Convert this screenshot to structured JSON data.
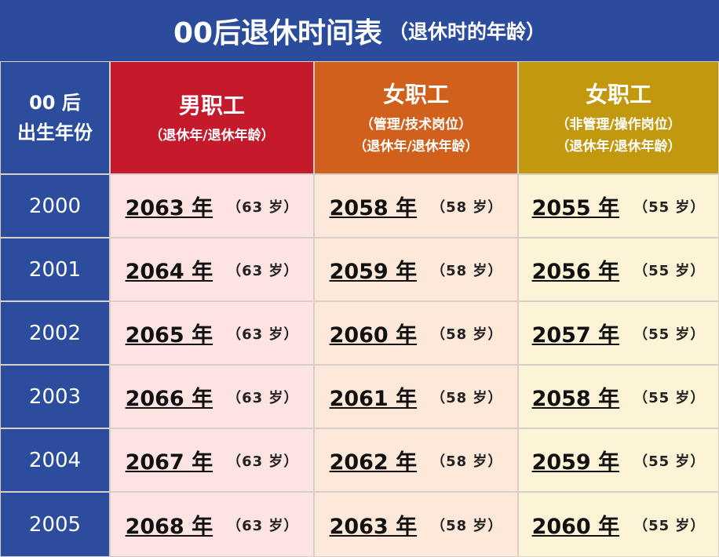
{
  "header": {
    "title": "00后退休时间表",
    "subtitle": "（退休时的年龄）"
  },
  "table": {
    "columns": [
      {
        "lines": [
          "00 后",
          "出生年份"
        ]
      },
      {
        "lines": [
          "男职工",
          "（退休年/退休年龄）"
        ]
      },
      {
        "lines": [
          "女职工",
          "（管理/技术岗位）",
          "（退休年/退休年龄）"
        ]
      },
      {
        "lines": [
          "女职工",
          "（非管理/操作岗位）",
          "（退休年/退休年龄）"
        ]
      }
    ],
    "rows": [
      {
        "birth": "2000",
        "cells": [
          {
            "year": "2063 年",
            "age": "（63 岁）"
          },
          {
            "year": "2058 年",
            "age": "（58 岁）"
          },
          {
            "year": "2055 年",
            "age": "（55 岁）"
          }
        ]
      },
      {
        "birth": "2001",
        "cells": [
          {
            "year": "2064 年",
            "age": "（63 岁）"
          },
          {
            "year": "2059 年",
            "age": "（58 岁）"
          },
          {
            "year": "2056 年",
            "age": "（55 岁）"
          }
        ]
      },
      {
        "birth": "2002",
        "cells": [
          {
            "year": "2065 年",
            "age": "（63 岁）"
          },
          {
            "year": "2060 年",
            "age": "（58 岁）"
          },
          {
            "year": "2057 年",
            "age": "（55 岁）"
          }
        ]
      },
      {
        "birth": "2003",
        "cells": [
          {
            "year": "2066 年",
            "age": "（63 岁）"
          },
          {
            "year": "2061 年",
            "age": "（58 岁）"
          },
          {
            "year": "2058 年",
            "age": "（55 岁）"
          }
        ]
      },
      {
        "birth": "2004",
        "cells": [
          {
            "year": "2067 年",
            "age": "（63 岁）"
          },
          {
            "year": "2062 年",
            "age": "（58 岁）"
          },
          {
            "year": "2059 年",
            "age": "（55 岁）"
          }
        ]
      },
      {
        "birth": "2005",
        "cells": [
          {
            "year": "2068 年",
            "age": "（63 岁）"
          },
          {
            "year": "2063 年",
            "age": "（58 岁）"
          },
          {
            "year": "2060 年",
            "age": "（55 岁）"
          }
        ]
      }
    ]
  }
}
